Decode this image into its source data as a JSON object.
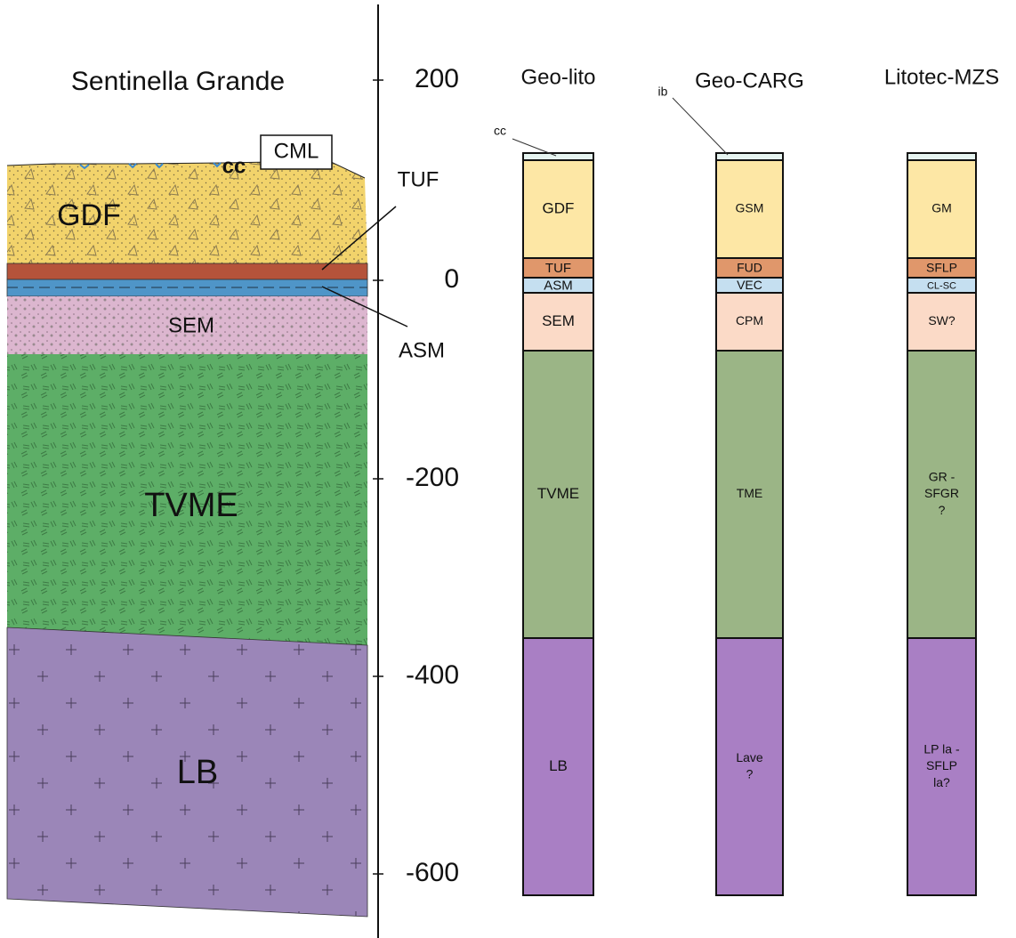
{
  "section": {
    "title": "Sentinella Grande",
    "code": "CML",
    "surface_label": "cc",
    "layers": [
      "GDF",
      "SEM",
      "TVME",
      "LB"
    ],
    "callouts": [
      "TUF",
      "ASM"
    ]
  },
  "scale": {
    "ticks": [
      "200",
      "0",
      "-200",
      "-400",
      "-600"
    ]
  },
  "columns": [
    {
      "title": "Geo-lito",
      "top_label": "cc",
      "layers": [
        [
          "GDF"
        ],
        [
          "TUF"
        ],
        [
          "ASM"
        ],
        [
          "SEM"
        ],
        [
          "TVME"
        ],
        [
          "LB"
        ]
      ]
    },
    {
      "title": "Geo-CARG",
      "top_label": "ib",
      "layers": [
        [
          "GSM"
        ],
        [
          "FUD"
        ],
        [
          "VEC"
        ],
        [
          "CPM"
        ],
        [
          "TME"
        ],
        [
          "Lave",
          "?"
        ]
      ]
    },
    {
      "title": "Litotec-MZS",
      "layers": [
        [
          "GM"
        ],
        [
          "SFLP"
        ],
        [
          "CL-SC"
        ],
        [
          "SW?"
        ],
        [
          "GR -",
          "SFGR",
          "?"
        ],
        [
          "LP la -",
          "SFLP",
          "la?"
        ]
      ]
    }
  ]
}
